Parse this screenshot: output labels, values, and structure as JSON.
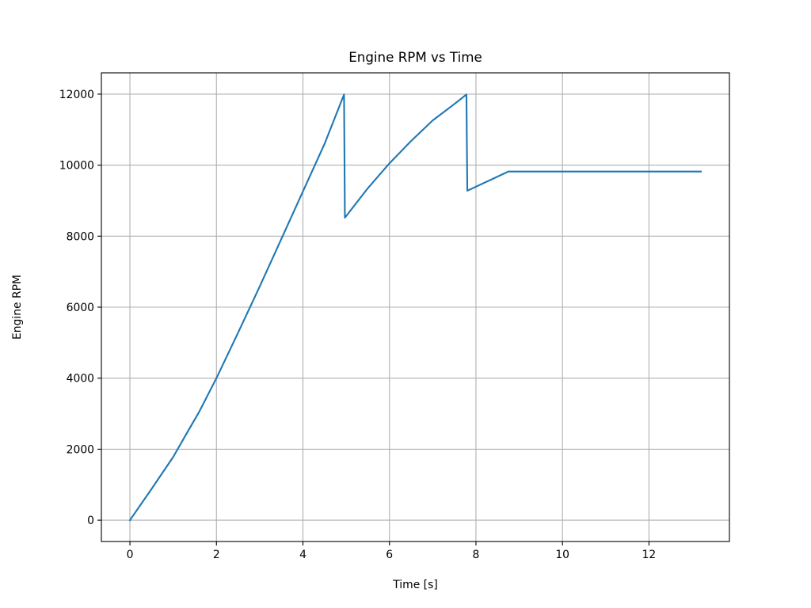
{
  "chart_data": {
    "type": "line",
    "title": "Engine RPM vs Time",
    "xlabel": "Time [s]",
    "ylabel": "Engine RPM",
    "xlim": [
      -0.66,
      13.86
    ],
    "ylim": [
      -600,
      12600
    ],
    "xticks": [
      0,
      2,
      4,
      6,
      8,
      10,
      12
    ],
    "yticks": [
      0,
      2000,
      4000,
      6000,
      8000,
      10000,
      12000
    ],
    "grid": true,
    "series": [
      {
        "color": "#1f77b4",
        "x": [
          0,
          0.5,
          1.0,
          1.3,
          1.6,
          2.0,
          2.5,
          3.0,
          3.5,
          4.0,
          4.5,
          4.95,
          4.97,
          5.5,
          6.0,
          6.5,
          7.0,
          7.5,
          7.78,
          7.8,
          8.75,
          9.5,
          10.5,
          11.5,
          12.5,
          13.2
        ],
        "y": [
          0,
          880,
          1780,
          2420,
          3050,
          4000,
          5280,
          6580,
          7920,
          9260,
          10600,
          11990,
          8520,
          9350,
          10050,
          10680,
          11260,
          11720,
          11990,
          9280,
          9820,
          9820,
          9820,
          9820,
          9820,
          9820
        ]
      }
    ]
  }
}
